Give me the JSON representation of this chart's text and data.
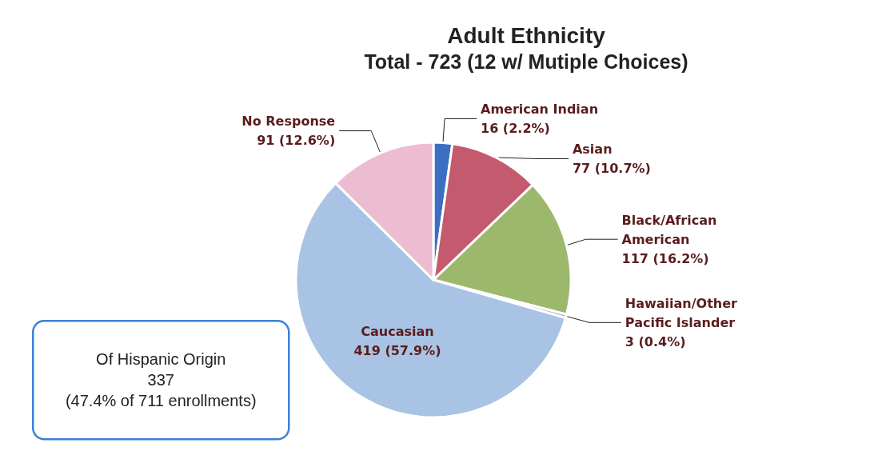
{
  "chart_data": {
    "type": "pie",
    "title": "Adult Ethnicity",
    "subtitle": "Total - 723 (12 w/ Mutiple Choices)",
    "categories": [
      "American Indian",
      "Asian",
      "Black/African American",
      "Hawaiian/Other Pacific Islander",
      "Caucasian",
      "No Response"
    ],
    "values": [
      16,
      77,
      117,
      3,
      419,
      91
    ],
    "value_labels": [
      "16 (2.2%)",
      "77 (10.7%)",
      "117 (16.2%)",
      "3 (0.4%)",
      "419 (57.9%)",
      "91 (12.6%)"
    ],
    "colors": [
      "#3c6fc2",
      "#c35a6e",
      "#9cb86c",
      "#b5a8d2",
      "#a8c3e3",
      "#ecbdd0"
    ],
    "annotations": [
      "Of Hispanic Origin\n337\n(47.4% of 711 enrollments)"
    ],
    "legend": false
  }
}
